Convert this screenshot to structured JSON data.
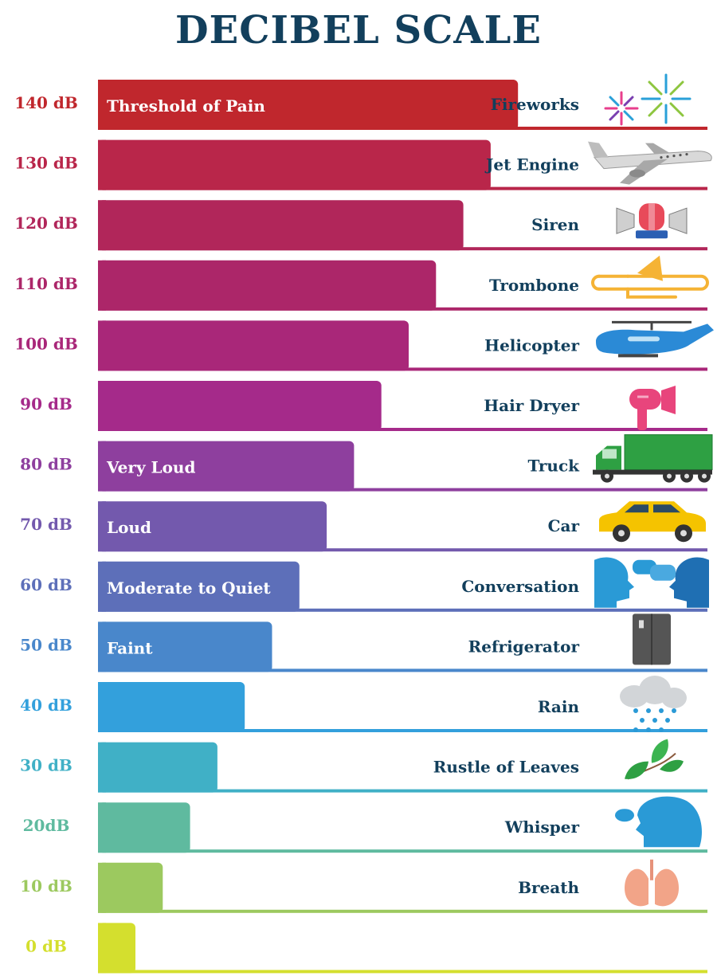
{
  "title": "DECIBEL SCALE",
  "chart_data": {
    "type": "bar",
    "orientation": "horizontal",
    "title": "DECIBEL SCALE",
    "xlim": [
      0,
      140
    ],
    "grid": false,
    "rows": [
      {
        "label": "140 dB",
        "value": 140,
        "source": "Fireworks",
        "category": "Threshold of Pain",
        "color": "#c0272d",
        "icon": "fireworks-icon"
      },
      {
        "label": "130 dB",
        "value": 130,
        "source": "Jet Engine",
        "category": "",
        "color": "#b9264a",
        "icon": "jet-engine-icon"
      },
      {
        "label": "120 dB",
        "value": 120,
        "source": "Siren",
        "category": "",
        "color": "#b1265a",
        "icon": "siren-icon"
      },
      {
        "label": "110 dB",
        "value": 110,
        "source": "Trombone",
        "category": "",
        "color": "#ac2669",
        "icon": "trombone-icon"
      },
      {
        "label": "100 dB",
        "value": 100,
        "source": "Helicopter",
        "category": "",
        "color": "#a92779",
        "icon": "helicopter-icon"
      },
      {
        "label": "90 dB",
        "value": 90,
        "source": "Hair Dryer",
        "category": "",
        "color": "#a52a8a",
        "icon": "hair-dryer-icon"
      },
      {
        "label": "80 dB",
        "value": 80,
        "source": "Truck",
        "category": "Very Loud",
        "color": "#8e3f9e",
        "icon": "truck-icon"
      },
      {
        "label": "70 dB",
        "value": 70,
        "source": "Car",
        "category": "Loud",
        "color": "#7359ad",
        "icon": "car-icon"
      },
      {
        "label": "60 dB",
        "value": 60,
        "source": "Conversation",
        "category": "Moderate to Quiet",
        "color": "#5d6fb9",
        "icon": "conversation-icon"
      },
      {
        "label": "50 dB",
        "value": 50,
        "source": "Refrigerator",
        "category": "Faint",
        "color": "#4987cb",
        "icon": "refrigerator-icon"
      },
      {
        "label": "40 dB",
        "value": 40,
        "source": "Rain",
        "category": "",
        "color": "#33a0dc",
        "icon": "rain-icon"
      },
      {
        "label": "30 dB",
        "value": 30,
        "source": "Rustle of Leaves",
        "category": "",
        "color": "#40b0c6",
        "icon": "leaves-icon"
      },
      {
        "label": "20dB",
        "value": 20,
        "source": "Whisper",
        "category": "",
        "color": "#5fba9f",
        "icon": "whisper-icon"
      },
      {
        "label": "10 dB",
        "value": 10,
        "source": "Breath",
        "category": "",
        "color": "#9cc95f",
        "icon": "lungs-icon"
      },
      {
        "label": "0 dB",
        "value": 0,
        "source": "",
        "category": "",
        "color": "#d4df2e",
        "icon": ""
      }
    ]
  }
}
